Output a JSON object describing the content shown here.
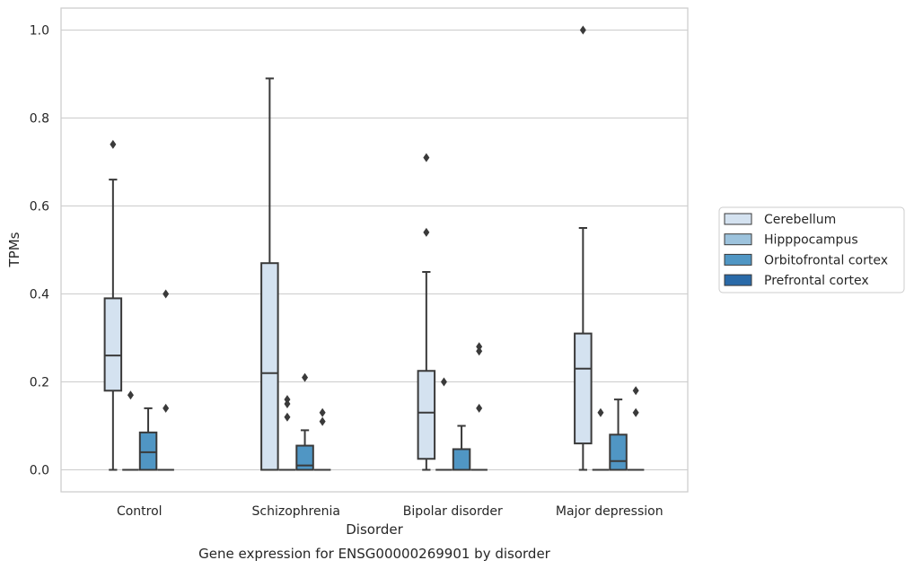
{
  "chart_data": {
    "type": "box",
    "caption": "Gene expression for ENSG00000269901 by disorder",
    "xlabel": "Disorder",
    "ylabel": "TPMs",
    "categories": [
      "Control",
      "Schizophrenia",
      "Bipolar disorder",
      "Major depression"
    ],
    "ylim": [
      -0.05,
      1.05
    ],
    "yticks": [
      "0.0",
      "0.2",
      "0.4",
      "0.6",
      "0.8",
      "1.0"
    ],
    "grid": "horizontal",
    "legend_position": "right",
    "series": [
      {
        "name": "Cerebellum",
        "color": "#d4e2f0",
        "boxes": [
          {
            "q1": 0.18,
            "median": 0.26,
            "q3": 0.39,
            "whisker_low": 0.0,
            "whisker_high": 0.66,
            "outliers": [
              0.74
            ]
          },
          {
            "q1": 0.0,
            "median": 0.22,
            "q3": 0.47,
            "whisker_low": 0.0,
            "whisker_high": 0.89,
            "outliers": []
          },
          {
            "q1": 0.025,
            "median": 0.13,
            "q3": 0.225,
            "whisker_low": 0.0,
            "whisker_high": 0.45,
            "outliers": [
              0.54,
              0.71
            ]
          },
          {
            "q1": 0.06,
            "median": 0.23,
            "q3": 0.31,
            "whisker_low": 0.0,
            "whisker_high": 0.55,
            "outliers": [
              1.0
            ]
          }
        ]
      },
      {
        "name": "Hipppocampus",
        "color": "#9dc3dd",
        "boxes": [
          {
            "q1": 0.0,
            "median": 0.0,
            "q3": 0.0,
            "whisker_low": 0.0,
            "whisker_high": 0.0,
            "outliers": [
              0.17
            ]
          },
          {
            "q1": 0.0,
            "median": 0.0,
            "q3": 0.0,
            "whisker_low": 0.0,
            "whisker_high": 0.0,
            "outliers": [
              0.12,
              0.15,
              0.16
            ]
          },
          {
            "q1": 0.0,
            "median": 0.0,
            "q3": 0.0,
            "whisker_low": 0.0,
            "whisker_high": 0.0,
            "outliers": [
              0.2
            ]
          },
          {
            "q1": 0.0,
            "median": 0.0,
            "q3": 0.0,
            "whisker_low": 0.0,
            "whisker_high": 0.0,
            "outliers": [
              0.13
            ]
          }
        ]
      },
      {
        "name": "Orbitofrontal cortex",
        "color": "#5096c4",
        "boxes": [
          {
            "q1": 0.0,
            "median": 0.04,
            "q3": 0.085,
            "whisker_low": 0.0,
            "whisker_high": 0.14,
            "outliers": []
          },
          {
            "q1": 0.0,
            "median": 0.01,
            "q3": 0.055,
            "whisker_low": 0.0,
            "whisker_high": 0.09,
            "outliers": [
              0.21
            ]
          },
          {
            "q1": 0.0,
            "median": 0.0,
            "q3": 0.047,
            "whisker_low": 0.0,
            "whisker_high": 0.1,
            "outliers": []
          },
          {
            "q1": 0.0,
            "median": 0.02,
            "q3": 0.08,
            "whisker_low": 0.0,
            "whisker_high": 0.16,
            "outliers": []
          }
        ]
      },
      {
        "name": "Prefrontal cortex",
        "color": "#2a6aa8",
        "boxes": [
          {
            "q1": 0.0,
            "median": 0.0,
            "q3": 0.0,
            "whisker_low": 0.0,
            "whisker_high": 0.0,
            "outliers": [
              0.14,
              0.4
            ]
          },
          {
            "q1": 0.0,
            "median": 0.0,
            "q3": 0.0,
            "whisker_low": 0.0,
            "whisker_high": 0.0,
            "outliers": [
              0.11,
              0.13
            ]
          },
          {
            "q1": 0.0,
            "median": 0.0,
            "q3": 0.0,
            "whisker_low": 0.0,
            "whisker_high": 0.0,
            "outliers": [
              0.14,
              0.27,
              0.28
            ]
          },
          {
            "q1": 0.0,
            "median": 0.0,
            "q3": 0.0,
            "whisker_low": 0.0,
            "whisker_high": 0.0,
            "outliers": [
              0.13,
              0.18
            ]
          }
        ]
      }
    ]
  }
}
